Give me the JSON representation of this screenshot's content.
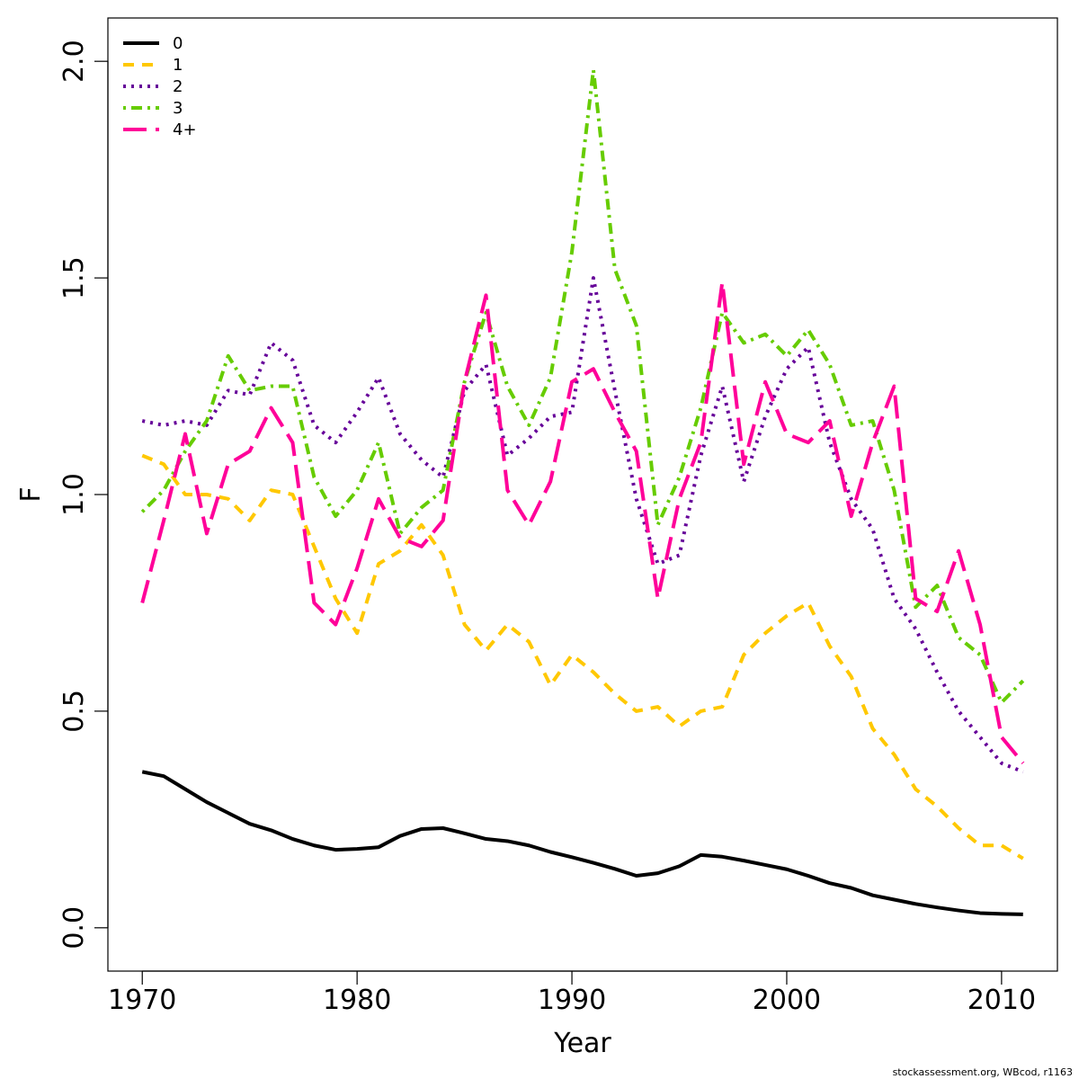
{
  "chart_data": {
    "type": "line",
    "xlabel": "Year",
    "ylabel": "F",
    "xlim": [
      1968.4,
      2012.6
    ],
    "ylim": [
      -0.1,
      2.1
    ],
    "x_ticks": [
      1970,
      1980,
      1990,
      2000,
      2010
    ],
    "y_ticks": [
      0.0,
      0.5,
      1.0,
      1.5,
      2.0
    ],
    "y_tick_labels": [
      "0.0",
      "0.5",
      "1.0",
      "1.5",
      "2.0"
    ],
    "grid": false,
    "legend_position": "top-left",
    "x": [
      1970,
      1971,
      1972,
      1973,
      1974,
      1975,
      1976,
      1977,
      1978,
      1979,
      1980,
      1981,
      1982,
      1983,
      1984,
      1985,
      1986,
      1987,
      1988,
      1989,
      1990,
      1991,
      1992,
      1993,
      1994,
      1995,
      1996,
      1997,
      1998,
      1999,
      2000,
      2001,
      2002,
      2003,
      2004,
      2005,
      2006,
      2007,
      2008,
      2009,
      2010,
      2011
    ],
    "series": [
      {
        "name": "0",
        "color": "#000000",
        "dash": "solid",
        "values": [
          0.36,
          0.35,
          0.32,
          0.29,
          0.265,
          0.24,
          0.225,
          0.205,
          0.19,
          0.18,
          0.182,
          0.186,
          0.212,
          0.228,
          0.23,
          0.218,
          0.205,
          0.2,
          0.19,
          0.175,
          0.163,
          0.15,
          0.136,
          0.12,
          0.126,
          0.142,
          0.168,
          0.164,
          0.155,
          0.145,
          0.135,
          0.12,
          0.103,
          0.092,
          0.075,
          0.065,
          0.055,
          0.047,
          0.04,
          0.034,
          0.032,
          0.031
        ]
      },
      {
        "name": "1",
        "color": "#FFC800",
        "dash": "dashed",
        "values": [
          1.09,
          1.07,
          1.0,
          1.0,
          0.99,
          0.94,
          1.01,
          1.0,
          0.88,
          0.76,
          0.68,
          0.84,
          0.87,
          0.93,
          0.86,
          0.7,
          0.64,
          0.7,
          0.66,
          0.56,
          0.63,
          0.59,
          0.54,
          0.5,
          0.51,
          0.465,
          0.5,
          0.51,
          0.63,
          0.68,
          0.72,
          0.75,
          0.65,
          0.58,
          0.46,
          0.4,
          0.32,
          0.28,
          0.23,
          0.19,
          0.19,
          0.16
        ]
      },
      {
        "name": "2",
        "color": "#660099",
        "dash": "dotted",
        "values": [
          1.17,
          1.16,
          1.17,
          1.16,
          1.24,
          1.23,
          1.35,
          1.31,
          1.16,
          1.12,
          1.19,
          1.27,
          1.14,
          1.08,
          1.04,
          1.24,
          1.3,
          1.09,
          1.13,
          1.18,
          1.19,
          1.5,
          1.24,
          0.99,
          0.84,
          0.86,
          1.09,
          1.25,
          1.03,
          1.18,
          1.29,
          1.34,
          1.12,
          0.99,
          0.92,
          0.76,
          0.69,
          0.59,
          0.5,
          0.44,
          0.38,
          0.36
        ]
      },
      {
        "name": "3",
        "color": "#66CC00",
        "dash": "dotdash",
        "values": [
          0.96,
          1.01,
          1.1,
          1.17,
          1.32,
          1.24,
          1.25,
          1.25,
          1.04,
          0.95,
          1.01,
          1.12,
          0.91,
          0.97,
          1.01,
          1.26,
          1.42,
          1.25,
          1.16,
          1.27,
          1.56,
          1.98,
          1.52,
          1.39,
          0.93,
          1.04,
          1.2,
          1.42,
          1.35,
          1.37,
          1.32,
          1.38,
          1.3,
          1.16,
          1.17,
          1.01,
          0.74,
          0.79,
          0.67,
          0.63,
          0.52,
          0.57
        ]
      },
      {
        "name": "4+",
        "color": "#FF0099",
        "dash": "longdash",
        "values": [
          0.75,
          0.94,
          1.14,
          0.91,
          1.07,
          1.1,
          1.2,
          1.12,
          0.75,
          0.7,
          0.83,
          0.99,
          0.9,
          0.88,
          0.94,
          1.26,
          1.46,
          1.01,
          0.93,
          1.03,
          1.26,
          1.29,
          1.19,
          1.1,
          0.76,
          0.99,
          1.12,
          1.49,
          1.07,
          1.26,
          1.14,
          1.12,
          1.17,
          0.95,
          1.12,
          1.25,
          0.76,
          0.73,
          0.87,
          0.7,
          0.44,
          0.38
        ]
      }
    ]
  },
  "footer": {
    "credit": "stockassessment.org, WBcod, r1163"
  }
}
